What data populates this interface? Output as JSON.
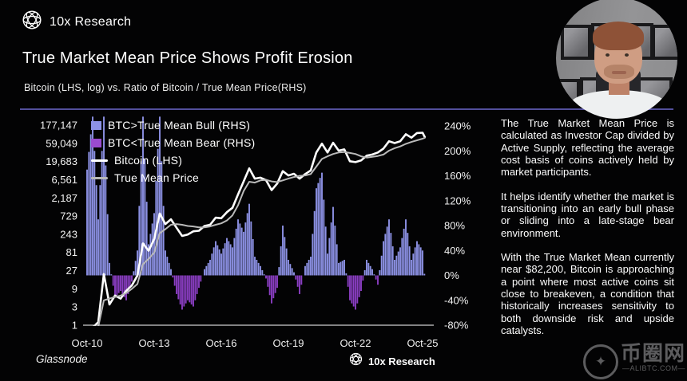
{
  "header": {
    "brand": "10x Research",
    "title": "True Market Mean Price Shows Profit Erosion",
    "subtitle": "Bitcoin (LHS, log) vs. Ratio of Bitcoin / True Mean Price(RHS)"
  },
  "footer": {
    "source": "Glassnode",
    "brand": "10x Research"
  },
  "side_panel": {
    "paragraphs": [
      "The True Market Mean Price is calculated as Investor Cap divided by Active Supply, reflecting the average cost basis of coins actively held by market participants.",
      "It helps identify whether the market is transitioning into an early bull phase or sliding into a late-stage bear environment.",
      "With the True Market Mean currently near $82,200, Bitcoin is approaching a point where most active coins sit close to breakeven, a condition that historically increases sensitivity to both downside risk and upside catalysts."
    ]
  },
  "watermark": {
    "cn": "币圈网",
    "site": "—ALIBTC.COM—",
    "glyph": "✦"
  },
  "colors": {
    "background": "#030304",
    "divider": "#534f9c",
    "bull": "#8d92e6",
    "bear": "#8a3ec2",
    "btc_line": "#ffffff",
    "tmp_line": "#b9b9b9",
    "axis": "#cfcfcf",
    "text": "#ffffff"
  },
  "chart_data": {
    "type": "combo-bar-line",
    "title": "True Market Mean Price Shows Profit Erosion",
    "subtitle": "Bitcoin (LHS, log) vs. Ratio of Bitcoin / True Mean Price(RHS)",
    "x_ticks": [
      "Oct-10",
      "Oct-13",
      "Oct-16",
      "Oct-19",
      "Oct-22",
      "Oct-25"
    ],
    "lhs_ticks": [
      "177,147",
      "59,049",
      "19,683",
      "6,561",
      "2,187",
      "729",
      "243",
      "81",
      "27",
      "9",
      "3",
      "1"
    ],
    "rhs_ticks": [
      "240%",
      "200%",
      "160%",
      "120%",
      "80%",
      "40%",
      "0%",
      "-40%",
      "-80%"
    ],
    "lhs_axis": {
      "scale": "log3",
      "min": 1,
      "max": 177147
    },
    "rhs_axis": {
      "min": -80,
      "max": 240,
      "unit": "%"
    },
    "legend": [
      {
        "label": "BTC>True Mean Bull (RHS)",
        "swatch": "square",
        "color": "#8d92e6"
      },
      {
        "label": "BTC<True Mean Bear (RHS)",
        "swatch": "square",
        "color": "#9a4bd0"
      },
      {
        "label": "Bitcoin (LHS)",
        "swatch": "line",
        "color": "#ffffff"
      },
      {
        "label": "True Mean Price",
        "swatch": "line",
        "color": "#b9b9b9"
      }
    ],
    "t_years": [
      0,
      0.25,
      0.5,
      0.75,
      1,
      1.25,
      1.5,
      1.75,
      2,
      2.25,
      2.5,
      2.75,
      3,
      3.25,
      3.5,
      3.75,
      4,
      4.25,
      4.5,
      4.75,
      5,
      5.25,
      5.5,
      5.75,
      6,
      6.25,
      6.5,
      6.75,
      7,
      7.25,
      7.5,
      7.75,
      8,
      8.25,
      8.5,
      8.75,
      9,
      9.25,
      9.5,
      9.75,
      10,
      10.25,
      10.5,
      10.75,
      11,
      11.25,
      11.5,
      11.75,
      12,
      12.25,
      12.5,
      12.75,
      13,
      13.25,
      13.5,
      13.75,
      14,
      14.25,
      14.5,
      14.75,
      15,
      15.1
    ],
    "btc_price": [
      0.15,
      0.4,
      1.2,
      22,
      3.5,
      6,
      5,
      8,
      11,
      20,
      140,
      90,
      180,
      850,
      450,
      600,
      360,
      220,
      240,
      290,
      300,
      400,
      430,
      660,
      640,
      920,
      1200,
      2700,
      5900,
      13000,
      7000,
      7400,
      6400,
      3500,
      5200,
      11000,
      8500,
      9400,
      7000,
      9200,
      11500,
      34000,
      58000,
      34000,
      61000,
      38000,
      41000,
      20000,
      19000,
      21000,
      28000,
      30000,
      34000,
      43000,
      67000,
      60000,
      67000,
      102000,
      83000,
      110000,
      112000,
      86000
    ],
    "true_mean_price": [
      0.3,
      0.5,
      0.9,
      4.5,
      5,
      5.5,
      6,
      7,
      9,
      12,
      40,
      55,
      80,
      260,
      330,
      430,
      450,
      430,
      400,
      390,
      370,
      370,
      390,
      430,
      470,
      560,
      760,
      1400,
      3300,
      5800,
      5500,
      6300,
      6500,
      5900,
      5700,
      6300,
      7000,
      7700,
      8300,
      8500,
      9200,
      14500,
      23000,
      27000,
      31000,
      34000,
      35000,
      33000,
      31000,
      27000,
      25000,
      26000,
      27500,
      30000,
      38000,
      44000,
      49000,
      57000,
      64000,
      71000,
      78000,
      82200
    ],
    "ratio_pct": [
      170,
      255,
      90,
      255,
      20,
      -35,
      -25,
      -40,
      -10,
      40,
      255,
      50,
      100,
      255,
      40,
      10,
      -30,
      -55,
      -40,
      -50,
      -20,
      10,
      25,
      55,
      35,
      60,
      45,
      90,
      70,
      115,
      30,
      15,
      -5,
      -45,
      -20,
      80,
      25,
      5,
      -30,
      15,
      30,
      140,
      165,
      35,
      110,
      20,
      25,
      -40,
      -55,
      -25,
      25,
      10,
      -15,
      55,
      90,
      25,
      45,
      90,
      25,
      55,
      40,
      -5
    ]
  }
}
